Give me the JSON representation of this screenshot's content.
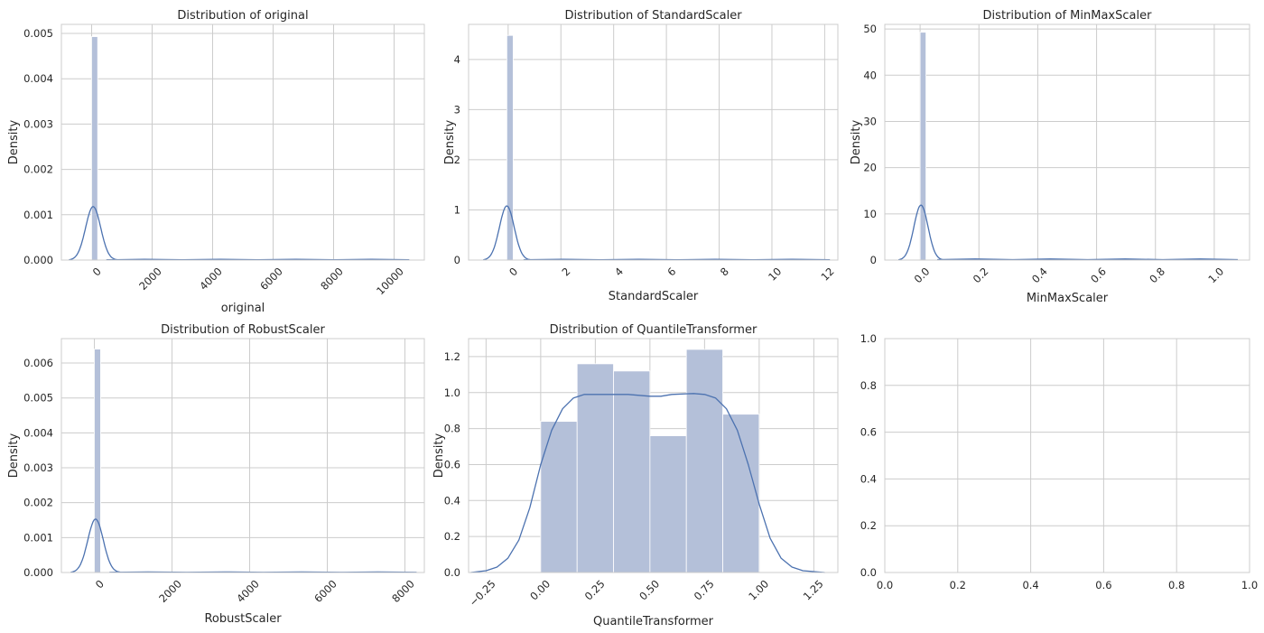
{
  "chart_data": [
    {
      "type": "histogram+kde",
      "title": "Distribution of original",
      "xlabel": "original",
      "ylabel": "Density",
      "xlim": [
        -1000,
        11000
      ],
      "ylim": [
        0,
        0.0052
      ],
      "xticks": [
        0,
        2000,
        4000,
        6000,
        8000,
        10000
      ],
      "xtick_labels": [
        "0",
        "2000",
        "4000",
        "6000",
        "8000",
        "10000"
      ],
      "xtick_rotation": 45,
      "yticks": [
        0,
        0.001,
        0.002,
        0.003,
        0.004,
        0.005
      ],
      "ytick_labels": [
        "0.000",
        "0.001",
        "0.002",
        "0.003",
        "0.004",
        "0.005"
      ],
      "bins": [
        {
          "x0": 0,
          "x1": 200,
          "density": 0.00493
        }
      ],
      "kde": {
        "peak_x": 50,
        "peak_y": 0.00118,
        "sigma": 250,
        "tail_from": 500,
        "tail_to": 10500,
        "tail_level": 1e-05
      }
    },
    {
      "type": "histogram+kde",
      "title": "Distribution of StandardScaler",
      "xlabel": "StandardScaler",
      "ylabel": "Density",
      "xlim": [
        -1.5,
        12.5
      ],
      "ylim": [
        0,
        4.7
      ],
      "xticks": [
        0,
        2,
        4,
        6,
        8,
        10,
        12
      ],
      "xtick_labels": [
        "0",
        "2",
        "4",
        "6",
        "8",
        "10",
        "12"
      ],
      "xtick_rotation": 45,
      "yticks": [
        0,
        1,
        2,
        3,
        4
      ],
      "ytick_labels": [
        "0",
        "1",
        "2",
        "3",
        "4"
      ],
      "bins": [
        {
          "x0": -0.05,
          "x1": 0.19,
          "density": 4.48
        }
      ],
      "kde": {
        "peak_x": -0.05,
        "peak_y": 1.08,
        "sigma": 0.28,
        "tail_from": 0.6,
        "tail_to": 12.2,
        "tail_level": 0.01
      }
    },
    {
      "type": "histogram+kde",
      "title": "Distribution of MinMaxScaler",
      "xlabel": "MinMaxScaler",
      "ylabel": "Density",
      "xlim": [
        -0.12,
        1.12
      ],
      "ylim": [
        0,
        51
      ],
      "xticks": [
        0.0,
        0.2,
        0.4,
        0.6,
        0.8,
        1.0
      ],
      "xtick_labels": [
        "0.0",
        "0.2",
        "0.4",
        "0.6",
        "0.8",
        "1.0"
      ],
      "xtick_rotation": 45,
      "yticks": [
        0,
        10,
        20,
        30,
        40,
        50
      ],
      "ytick_labels": [
        "0",
        "10",
        "20",
        "30",
        "40",
        "50"
      ],
      "bins": [
        {
          "x0": 0.0,
          "x1": 0.02,
          "density": 49.3
        }
      ],
      "kde": {
        "peak_x": 0.003,
        "peak_y": 11.9,
        "sigma": 0.024,
        "tail_from": 0.06,
        "tail_to": 1.08,
        "tail_level": 0.15
      }
    },
    {
      "type": "histogram+kde",
      "title": "Distribution of RobustScaler",
      "xlabel": "RobustScaler",
      "ylabel": "Density",
      "xlim": [
        -850,
        8500
      ],
      "ylim": [
        0,
        0.0067
      ],
      "xticks": [
        0,
        2000,
        4000,
        6000,
        8000
      ],
      "xtick_labels": [
        "0",
        "2000",
        "4000",
        "6000",
        "8000"
      ],
      "xtick_rotation": 45,
      "yticks": [
        0,
        0.001,
        0.002,
        0.003,
        0.004,
        0.005,
        0.006
      ],
      "ytick_labels": [
        "0.000",
        "0.001",
        "0.002",
        "0.003",
        "0.004",
        "0.005",
        "0.006"
      ],
      "bins": [
        {
          "x0": 0,
          "x1": 160,
          "density": 0.0064
        }
      ],
      "kde": {
        "peak_x": 30,
        "peak_y": 0.00153,
        "sigma": 200,
        "tail_from": 400,
        "tail_to": 8300,
        "tail_level": 1e-05
      }
    },
    {
      "type": "histogram+kde",
      "title": "Distribution of QuantileTransformer",
      "xlabel": "QuantileTransformer",
      "ylabel": "Density",
      "xlim": [
        -0.33,
        1.36
      ],
      "ylim": [
        0,
        1.3
      ],
      "xticks": [
        -0.25,
        0.0,
        0.25,
        0.5,
        0.75,
        1.0,
        1.25
      ],
      "xtick_labels": [
        "−0.25",
        "0.00",
        "0.25",
        "0.50",
        "0.75",
        "1.00",
        "1.25"
      ],
      "xtick_rotation": 45,
      "yticks": [
        0,
        0.2,
        0.4,
        0.6,
        0.8,
        1.0,
        1.2
      ],
      "ytick_labels": [
        "0.0",
        "0.2",
        "0.4",
        "0.6",
        "0.8",
        "1.0",
        "1.2"
      ],
      "bins": [
        {
          "x0": 0.0,
          "x1": 0.1667,
          "density": 0.84
        },
        {
          "x0": 0.1667,
          "x1": 0.3333,
          "density": 1.16
        },
        {
          "x0": 0.3333,
          "x1": 0.5,
          "density": 1.12
        },
        {
          "x0": 0.5,
          "x1": 0.6667,
          "density": 0.76
        },
        {
          "x0": 0.6667,
          "x1": 0.8333,
          "density": 1.24
        },
        {
          "x0": 0.8333,
          "x1": 1.0,
          "density": 0.88
        }
      ],
      "kde_points": [
        [
          -0.32,
          0.0
        ],
        [
          -0.25,
          0.01
        ],
        [
          -0.2,
          0.03
        ],
        [
          -0.15,
          0.08
        ],
        [
          -0.1,
          0.18
        ],
        [
          -0.05,
          0.36
        ],
        [
          0.0,
          0.6
        ],
        [
          0.05,
          0.79
        ],
        [
          0.1,
          0.91
        ],
        [
          0.15,
          0.97
        ],
        [
          0.2,
          0.99
        ],
        [
          0.3,
          0.99
        ],
        [
          0.4,
          0.99
        ],
        [
          0.5,
          0.98
        ],
        [
          0.55,
          0.98
        ],
        [
          0.6,
          0.99
        ],
        [
          0.7,
          0.995
        ],
        [
          0.75,
          0.99
        ],
        [
          0.8,
          0.97
        ],
        [
          0.85,
          0.91
        ],
        [
          0.9,
          0.79
        ],
        [
          0.95,
          0.6
        ],
        [
          1.0,
          0.38
        ],
        [
          1.05,
          0.19
        ],
        [
          1.1,
          0.08
        ],
        [
          1.15,
          0.03
        ],
        [
          1.2,
          0.01
        ],
        [
          1.3,
          0.0
        ]
      ]
    },
    {
      "type": "empty",
      "title": "",
      "xlabel": "",
      "ylabel": "",
      "xlim": [
        0,
        1
      ],
      "ylim": [
        0,
        1
      ],
      "xticks": [
        0.0,
        0.2,
        0.4,
        0.6,
        0.8,
        1.0
      ],
      "xtick_labels": [
        "0.0",
        "0.2",
        "0.4",
        "0.6",
        "0.8",
        "1.0"
      ],
      "xtick_rotation": 0,
      "yticks": [
        0.0,
        0.2,
        0.4,
        0.6,
        0.8,
        1.0
      ],
      "ytick_labels": [
        "0.0",
        "0.2",
        "0.4",
        "0.6",
        "0.8",
        "1.0"
      ],
      "bins": []
    }
  ],
  "colors": {
    "bar": "#b4c0d9",
    "kde": "#4c72b0",
    "grid": "#cccccc",
    "text": "#262626"
  }
}
